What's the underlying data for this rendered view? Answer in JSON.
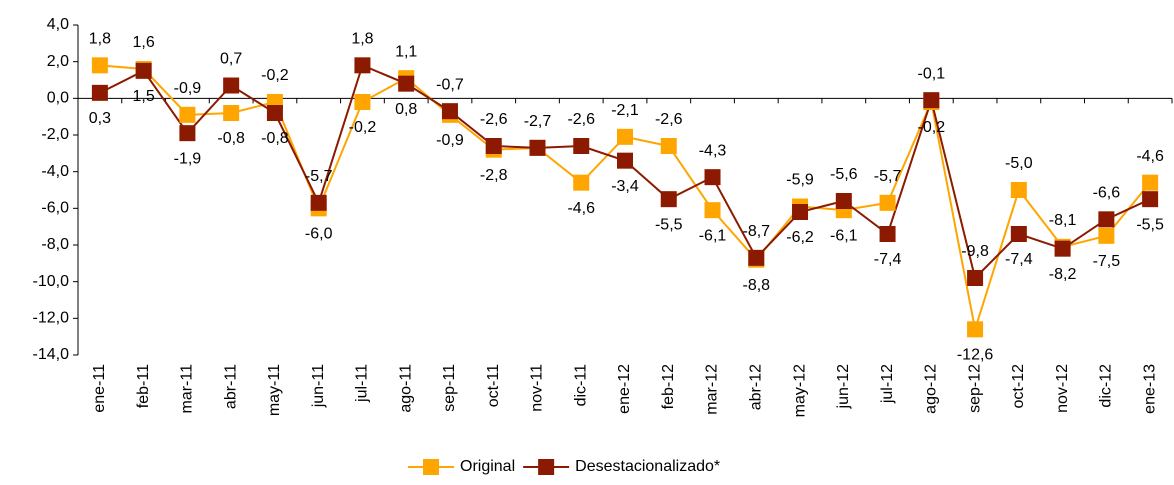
{
  "chart_data": {
    "type": "line",
    "categories": [
      "ene-11",
      "feb-11",
      "mar-11",
      "abr-11",
      "may-11",
      "jun-11",
      "jul-11",
      "ago-11",
      "sep-11",
      "oct-11",
      "nov-11",
      "dic-11",
      "ene-12",
      "feb-12",
      "mar-12",
      "abr-12",
      "may-12",
      "jun-12",
      "jul-12",
      "ago-12",
      "sep-12",
      "oct-12",
      "nov-12",
      "dic-12",
      "ene-13"
    ],
    "series": [
      {
        "name": "Original",
        "color": "#ffa500",
        "values": [
          1.8,
          1.6,
          -0.9,
          -0.8,
          -0.2,
          -6.0,
          -0.2,
          1.1,
          -0.9,
          -2.8,
          -2.7,
          -4.6,
          -2.1,
          -2.6,
          -6.1,
          -8.8,
          -5.9,
          -6.1,
          -5.7,
          -0.2,
          -12.6,
          -5.0,
          -8.1,
          -7.5,
          -4.6
        ],
        "value_labels": [
          "1,8",
          "1,6",
          "-0,9",
          "-0,8",
          "-0,2",
          "-6,0",
          "-0,2",
          "1,1",
          "-0,9",
          "-2,8",
          null,
          "-4,6",
          "-2,1",
          "-2,6",
          "-6,1",
          "-8,8",
          "-5,9",
          "-6,1",
          "-5,7",
          "-0,2",
          "-12,6",
          "-5,0",
          "-8,1",
          "-7,5",
          "-4,6"
        ]
      },
      {
        "name": "Desestacionalizado*",
        "color": "#8b1a00",
        "values": [
          0.3,
          1.5,
          -1.9,
          0.7,
          -0.8,
          -5.7,
          1.8,
          0.8,
          -0.7,
          -2.6,
          -2.7,
          -2.6,
          -3.4,
          -5.5,
          -4.3,
          -8.7,
          -6.2,
          -5.6,
          -7.4,
          -0.1,
          -9.8,
          -7.4,
          -8.2,
          -6.6,
          -5.5
        ],
        "value_labels": [
          "0,3",
          "1,5",
          "-1,9",
          "0,7",
          "-0,8",
          "-5,7",
          "1,8",
          "0,8",
          "-0,7",
          "-2,6",
          "-2,7",
          "-2,6",
          "-3,4",
          "-5,5",
          "-4,3",
          "-8,7",
          "-6,2",
          "-5,6",
          "-7,4",
          "-0,1",
          "-9,8",
          "-7,4",
          "-8,2",
          "-6,6",
          "-5,5"
        ]
      }
    ],
    "ylim": [
      -14,
      4
    ],
    "yticks": [
      {
        "value": -14,
        "label": "-14,0"
      },
      {
        "value": -12,
        "label": "-12,0"
      },
      {
        "value": -10,
        "label": "-10,0"
      },
      {
        "value": -8,
        "label": "-8,0"
      },
      {
        "value": -6,
        "label": "-6,0"
      },
      {
        "value": -4,
        "label": "-4,0"
      },
      {
        "value": -2,
        "label": "-2,0"
      },
      {
        "value": 0,
        "label": "0,0"
      },
      {
        "value": 2,
        "label": "2,0"
      },
      {
        "value": 4,
        "label": "4,0"
      }
    ],
    "legend": "bottom"
  }
}
